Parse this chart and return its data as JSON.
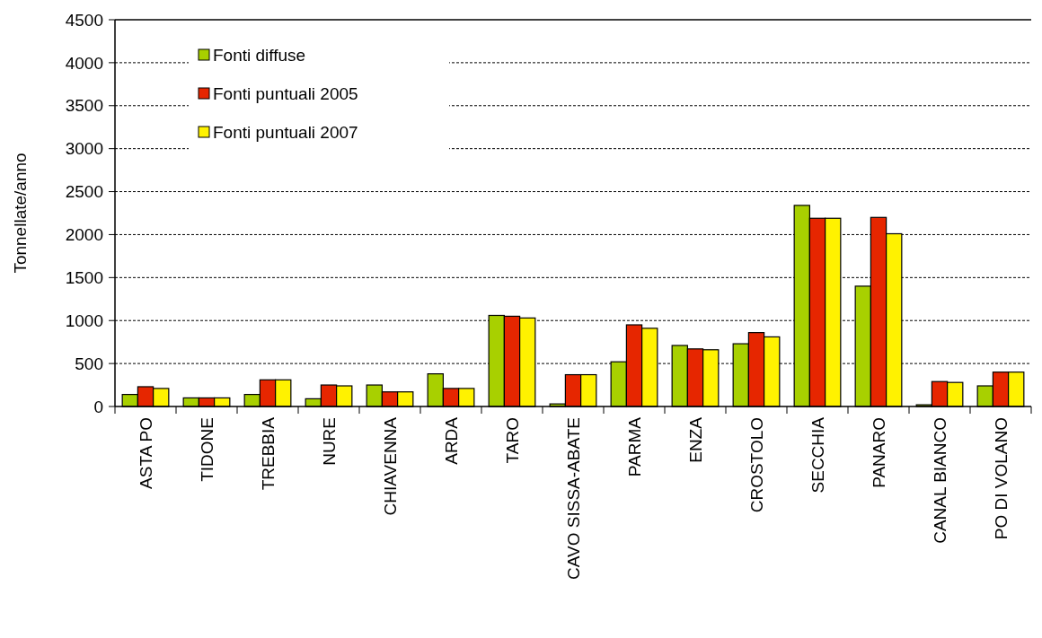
{
  "chart_data": {
    "type": "bar",
    "ylabel": "Tonnellate/anno",
    "categories": [
      "ASTA PO",
      "TIDONE",
      "TREBBIA",
      "NURE",
      "CHIAVENNA",
      "ARDA",
      "TARO",
      "CAVO SISSA-ABATE",
      "PARMA",
      "ENZA",
      "CROSTOLO",
      "SECCHIA",
      "PANARO",
      "CANAL BIANCO",
      "PO DI VOLANO"
    ],
    "series": [
      {
        "name": "Fonti diffuse",
        "color": "#a8d000",
        "values": [
          140,
          100,
          140,
          90,
          250,
          380,
          1060,
          30,
          520,
          710,
          730,
          2340,
          1400,
          20,
          240
        ]
      },
      {
        "name": "Fonti puntuali 2005",
        "color": "#e62600",
        "values": [
          230,
          100,
          310,
          250,
          170,
          210,
          1050,
          370,
          950,
          670,
          860,
          2190,
          2200,
          290,
          400
        ]
      },
      {
        "name": "Fonti puntuali 2007",
        "color": "#fff200",
        "values": [
          210,
          100,
          310,
          240,
          170,
          210,
          1030,
          370,
          910,
          660,
          810,
          2190,
          2010,
          280,
          400
        ]
      }
    ],
    "ylim": [
      0,
      4500
    ],
    "yticks": [
      0,
      500,
      1000,
      1500,
      2000,
      2500,
      3000,
      3500,
      4000,
      4500
    ],
    "grid": "y",
    "legend": "top left"
  }
}
